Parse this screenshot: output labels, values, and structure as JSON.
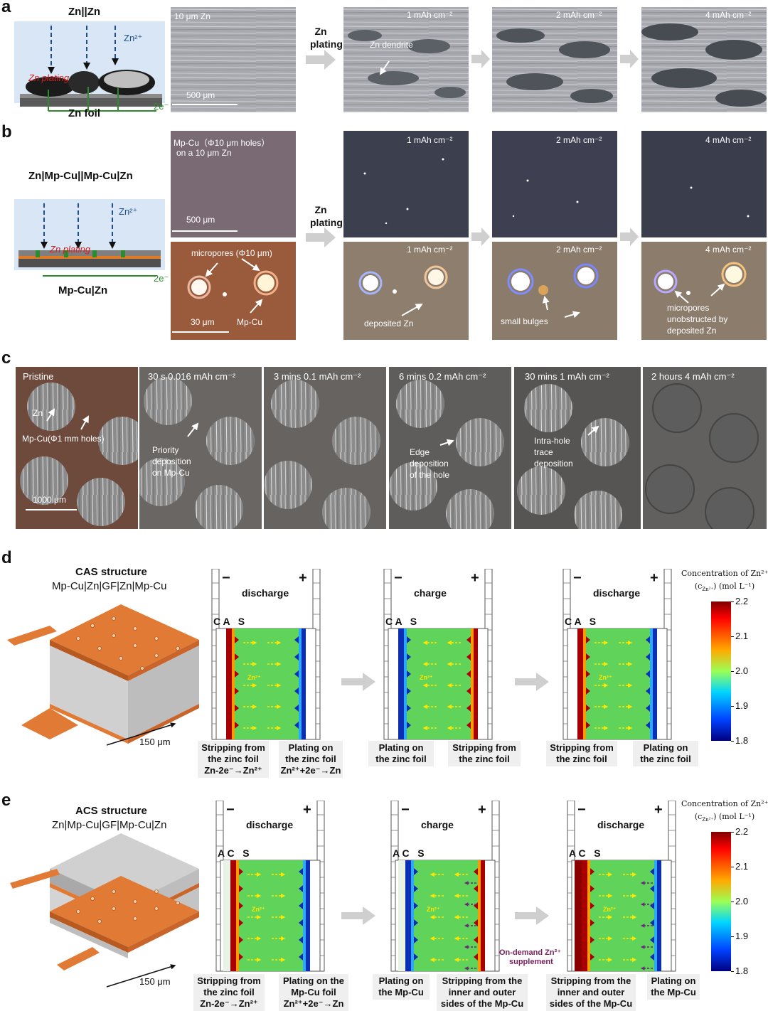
{
  "panel_a": {
    "letter": "a",
    "cell_label": "Zn||Zn",
    "ion_label": "Zn²⁺",
    "plating_label": "Zn plating",
    "foil_label": "Zn foil",
    "electron_label": "2e⁻",
    "micro_1_label": "10 μm Zn",
    "micro_1_scale": "500 μm",
    "process_label": "Zn plating",
    "micro_2_label": "1 mAh cm⁻²",
    "dendrite_label": "Zn dendrite",
    "micro_3_label": "2 mAh cm⁻²",
    "micro_4_label": "4 mAh cm⁻²"
  },
  "panel_b": {
    "letter": "b",
    "cell_label": "Zn|Mp-Cu||Mp-Cu|Zn",
    "ion_label": "Zn²⁺",
    "plating_label": "Zn plating",
    "foil_label": "Mp-Cu|Zn",
    "electron_label": "2e⁻",
    "micro_1_label_line1": "Mp-Cu（Φ10 μm holes）",
    "micro_1_label_line2": "on a 10 μm Zn",
    "micro_1_scale": "500 μm",
    "micro_low_label": "micropores (Φ10 μm)",
    "micro_low_scale": "30 μm",
    "micro_low_mpcu": "Mp-Cu",
    "process_label": "Zn plating",
    "top_labels": [
      "1 mAh cm⁻²",
      "2 mAh cm⁻²",
      "4 mAh cm⁻²"
    ],
    "bottom_labels": [
      "1 mAh cm⁻²",
      "2 mAh cm⁻²",
      "4 mAh cm⁻²"
    ],
    "deposited_label": "deposited Zn",
    "bulges_label": "small bulges",
    "unobstructed_line1": "micropores",
    "unobstructed_line2": "unobstructed by",
    "unobstructed_line3": "deposited Zn"
  },
  "panel_c": {
    "letter": "c",
    "frames": [
      {
        "label": "Pristine"
      },
      {
        "label": "30 s  0.016 mAh cm⁻²"
      },
      {
        "label": "3 mins  0.1 mAh cm⁻²"
      },
      {
        "label": "6 mins  0.2 mAh cm⁻²"
      },
      {
        "label": "30 mins  1 mAh cm⁻²"
      },
      {
        "label": "2 hours  4 mAh cm⁻²"
      }
    ],
    "zn_label": "Zn",
    "mpcu_label": "Mp-Cu(Φ1 mm holes)",
    "scale_label": "1000 μm",
    "priority_line1": "Priority",
    "priority_line2": "deposition",
    "priority_line3": "on Mp-Cu",
    "edge_line1": "Edge",
    "edge_line2": "deposition",
    "edge_line3": "of the hole",
    "intra_line1": "Intra-hole",
    "intra_line2": "trace",
    "intra_line3": "deposition"
  },
  "panel_d": {
    "letter": "d",
    "structure_title": "CAS structure",
    "structure_sub": "Mp-Cu|Zn|GF|Zn|Mp-Cu",
    "dimension": "150 μm",
    "sims": [
      {
        "mode": "discharge",
        "layers": "C A   S"
      },
      {
        "mode": "charge",
        "layers": "C A   S"
      },
      {
        "mode": "discharge",
        "layers": "C A   S"
      }
    ],
    "minus": "−",
    "plus": "+",
    "ion_label": "Zn²⁺",
    "captions": [
      [
        "Stripping from",
        "the zinc foil",
        "Zn-2e⁻→Zn²⁺"
      ],
      [
        "Plating on",
        "the zinc foil",
        "Zn²⁺+2e⁻→Zn"
      ],
      [
        "Plating on",
        "the zinc foil"
      ],
      [
        "Stripping from",
        "the zinc foil"
      ],
      [
        "Stripping from",
        "the zinc foil"
      ],
      [
        "Plating on",
        "the zinc foil"
      ]
    ],
    "colorbar": {
      "title_line1": "Concentration of Zn²⁺",
      "title_line2": "(c",
      "title_sub": "Zn²⁺",
      "title_line2_end": ") (mol L⁻¹)",
      "ticks": [
        "2.2",
        "2.1",
        "2.0",
        "1.9",
        "1.8"
      ]
    }
  },
  "panel_e": {
    "letter": "e",
    "structure_title": "ACS structure",
    "structure_sub": "Zn|Mp-Cu|GF|Mp-Cu|Zn",
    "dimension": "150 μm",
    "sims": [
      {
        "mode": "discharge",
        "layers": "A C   S"
      },
      {
        "mode": "charge",
        "layers": "A C   S"
      },
      {
        "mode": "discharge",
        "layers": "A C   S"
      }
    ],
    "minus": "−",
    "plus": "+",
    "ion_label": "Zn²⁺",
    "on_demand_line1": "On-demand Zn²⁺",
    "on_demand_line2": "supplement",
    "captions": [
      [
        "Stripping from",
        "the zinc foil",
        "Zn-2e⁻→Zn²⁺"
      ],
      [
        "Plating on the",
        "Mp-Cu foil",
        "Zn²⁺+2e⁻→Zn"
      ],
      [
        "Plating on",
        "the Mp-Cu"
      ],
      [
        "Stripping from the",
        "inner and outer",
        "sides of the Mp-Cu"
      ],
      [
        "Stripping from the",
        "inner and outer",
        "sides of the Mp-Cu"
      ],
      [
        "Plating on",
        "the Mp-Cu"
      ]
    ],
    "colorbar": {
      "title_line1": "Concentration of Zn²⁺",
      "title_line2": "(c",
      "title_sub": "Zn²⁺",
      "title_line2_end": ") (mol L⁻¹)",
      "ticks": [
        "2.2",
        "2.1",
        "2.0",
        "1.9",
        "1.8"
      ]
    }
  }
}
